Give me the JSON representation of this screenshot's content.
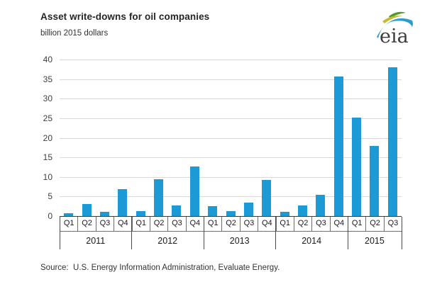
{
  "header": {
    "title": "Asset write-downs for oil companies",
    "subtitle": "billion 2015 dollars",
    "logo_text": "eia"
  },
  "chart_data": {
    "type": "bar",
    "title": "Asset write-downs for oil companies",
    "ylabel": "billion 2015 dollars",
    "xlabel": "",
    "ylim": [
      0,
      40
    ],
    "yticks": [
      0,
      5,
      10,
      15,
      20,
      25,
      30,
      35,
      40
    ],
    "grid": true,
    "legend_position": "none",
    "bar_color": "#1b9ad5",
    "groups": [
      {
        "year": "2011",
        "quarters": [
          "Q1",
          "Q2",
          "Q3",
          "Q4"
        ],
        "values": [
          0.7,
          3.0,
          1.1,
          6.8
        ]
      },
      {
        "year": "2012",
        "quarters": [
          "Q1",
          "Q2",
          "Q3",
          "Q4"
        ],
        "values": [
          1.2,
          9.5,
          2.8,
          12.6
        ]
      },
      {
        "year": "2013",
        "quarters": [
          "Q1",
          "Q2",
          "Q3",
          "Q4"
        ],
        "values": [
          2.5,
          1.2,
          3.4,
          9.2
        ]
      },
      {
        "year": "2014",
        "quarters": [
          "Q1",
          "Q2",
          "Q3",
          "Q4"
        ],
        "values": [
          1.0,
          2.8,
          5.5,
          35.7
        ]
      },
      {
        "year": "2015",
        "quarters": [
          "Q1",
          "Q2",
          "Q3"
        ],
        "values": [
          25.2,
          18.0,
          38.1
        ]
      }
    ]
  },
  "footer": {
    "source": "Source:  U.S. Energy Information Administration, Evaluate Energy."
  },
  "colors": {
    "bar": "#1b9ad5",
    "gridline": "#d9d9d9",
    "axis_line": "#3a3a3a",
    "box_border": "#6e6e6e",
    "logo_blue": "#2b9cd0",
    "logo_green": "#4f9c2e",
    "logo_yellow": "#c6ba2e",
    "logo_text_color": "#3c3c3c"
  }
}
